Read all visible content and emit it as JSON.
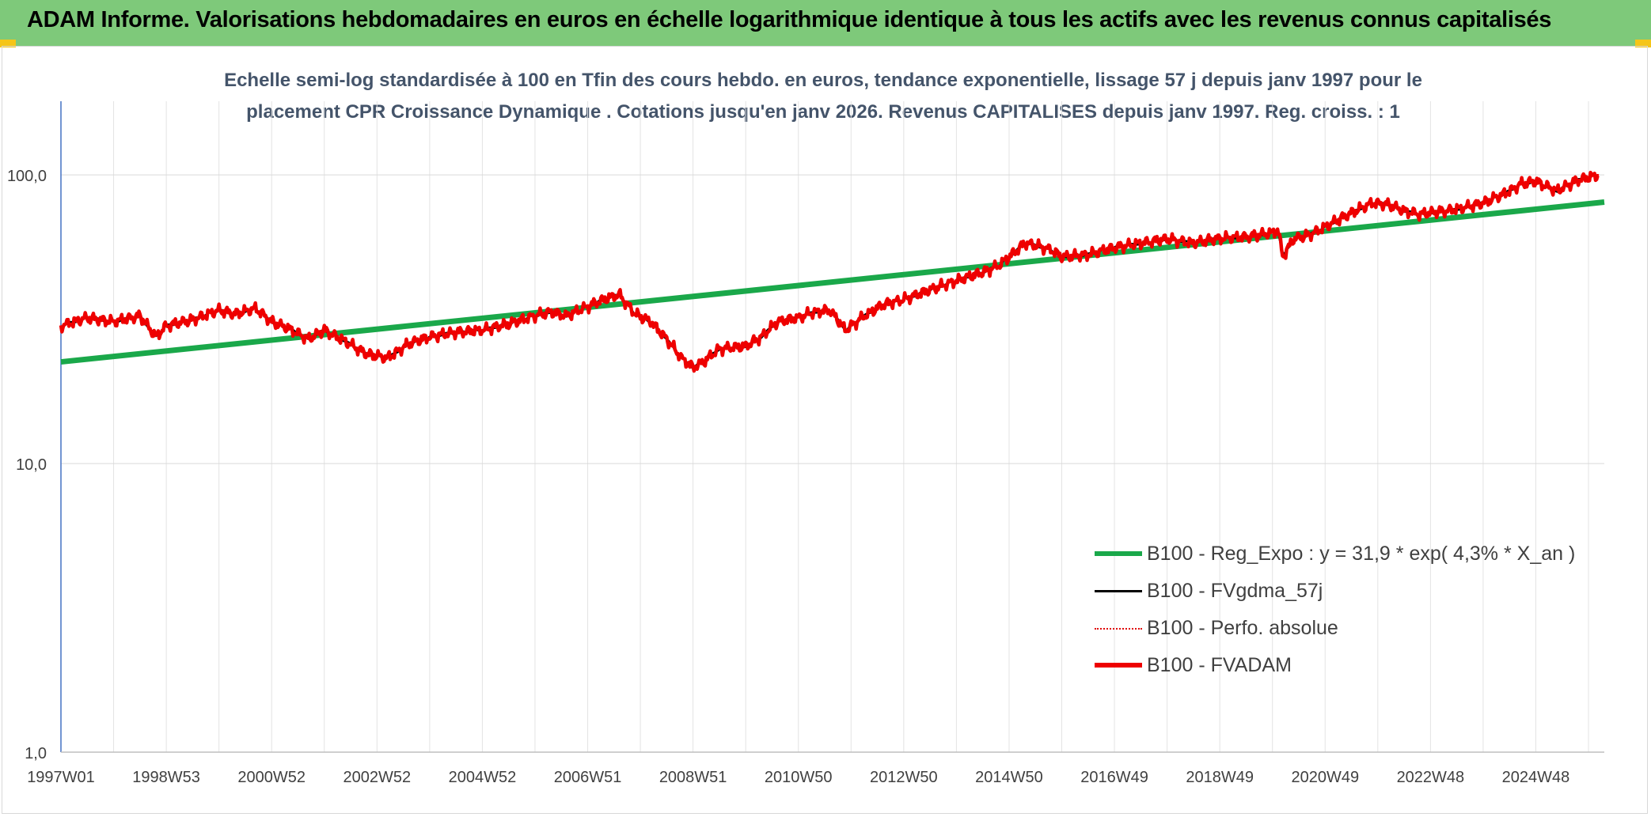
{
  "header": {
    "title": "ADAM Informe. Valorisations hebdomadaires en euros en échelle logarithmique identique à tous les actifs avec les revenus connus capitalisés"
  },
  "chart_data": {
    "type": "line",
    "title_line1": "Echelle semi-log standardisée à 100 en Tfin des cours hebdo. en euros, tendance exponentielle, lissage 57 j depuis janv 1997 pour le",
    "title_line2": "placement CPR Croissance Dynamique . Cotations jusqu'en janv 2026. Revenus CAPITALISES depuis janv 1997. Reg. croiss. : 1",
    "yscale": "log",
    "ylim": [
      1,
      180
    ],
    "xlim": [
      1997.0,
      2026.3
    ],
    "grid": true,
    "legend_position": "bottom-right",
    "y_ticks": [
      {
        "value": 1,
        "label": "1,0"
      },
      {
        "value": 10,
        "label": "10,0"
      },
      {
        "value": 100,
        "label": "100,0"
      }
    ],
    "x_ticks": [
      {
        "t": 1997.0,
        "label": "1997W01"
      },
      {
        "t": 1999.0,
        "label": "1998W53"
      },
      {
        "t": 2001.0,
        "label": "2000W52"
      },
      {
        "t": 2003.0,
        "label": "2002W52"
      },
      {
        "t": 2005.0,
        "label": "2004W52"
      },
      {
        "t": 2007.0,
        "label": "2006W51"
      },
      {
        "t": 2009.0,
        "label": "2008W51"
      },
      {
        "t": 2011.0,
        "label": "2010W50"
      },
      {
        "t": 2013.0,
        "label": "2012W50"
      },
      {
        "t": 2015.0,
        "label": "2014W50"
      },
      {
        "t": 2017.0,
        "label": "2016W49"
      },
      {
        "t": 2019.0,
        "label": "2018W49"
      },
      {
        "t": 2021.0,
        "label": "2020W49"
      },
      {
        "t": 2023.0,
        "label": "2022W48"
      },
      {
        "t": 2025.0,
        "label": "2024W48"
      }
    ],
    "series": [
      {
        "name": "B100 - Reg_Expo : y = 31,9 * exp( 4,3% *  X_an )",
        "color": "#1aa84a",
        "style": "solid-thick",
        "t": [
          1997.0,
          2026.3
        ],
        "values": [
          22.5,
          80.5
        ]
      },
      {
        "name": "B100 - FVgdma_57j",
        "color": "#000000",
        "style": "solid"
      },
      {
        "name": "B100 - Perfo. absolue",
        "color": "#e00000",
        "style": "dotted"
      },
      {
        "name": "B100 - FVADAM",
        "color": "#ee0000",
        "style": "solid-thick",
        "t": [
          1997.0,
          1997.5,
          1998.0,
          1998.5,
          1998.8,
          1999.0,
          1999.5,
          2000.0,
          2000.3,
          2000.7,
          2001.0,
          2001.3,
          2001.7,
          2002.0,
          2002.4,
          2002.8,
          2003.2,
          2003.6,
          2004.0,
          2004.5,
          2005.0,
          2005.5,
          2006.0,
          2006.3,
          2006.6,
          2007.0,
          2007.3,
          2007.6,
          2007.9,
          2008.2,
          2008.5,
          2008.8,
          2009.0,
          2009.2,
          2009.5,
          2010.0,
          2010.3,
          2010.6,
          2011.0,
          2011.3,
          2011.6,
          2011.9,
          2012.2,
          2012.6,
          2013.0,
          2013.5,
          2014.0,
          2014.5,
          2014.8,
          2015.0,
          2015.3,
          2015.5,
          2015.8,
          2016.0,
          2016.5,
          2017.0,
          2017.5,
          2018.0,
          2018.5,
          2018.9,
          2019.1,
          2019.5,
          2020.0,
          2020.1,
          2020.2,
          2020.4,
          2020.7,
          2021.0,
          2021.5,
          2021.9,
          2022.2,
          2022.5,
          2022.8,
          2023.0,
          2023.5,
          2024.0,
          2024.4,
          2024.6,
          2024.7,
          2025.0,
          2025.4,
          2025.8,
          2026.2
        ],
        "values": [
          30,
          32,
          31,
          32.5,
          27.5,
          30,
          31.5,
          34,
          33,
          34.5,
          31,
          29.5,
          27,
          29,
          26.5,
          24,
          23.2,
          26,
          27.5,
          28.5,
          29,
          30.5,
          32.5,
          33.5,
          32.5,
          35,
          37,
          38.5,
          33,
          31,
          27,
          23,
          21.5,
          22.5,
          25,
          25.5,
          27.5,
          31,
          32,
          33.5,
          34,
          29,
          32,
          35.5,
          37,
          40,
          43,
          46,
          48.5,
          52,
          58,
          57,
          55,
          52,
          53,
          56,
          58,
          60,
          58,
          60,
          60.5,
          61,
          63,
          65,
          52,
          60,
          62,
          66,
          74,
          80,
          79,
          75,
          73,
          74,
          76,
          80,
          86,
          90,
          93,
          95,
          88,
          96,
          100
        ]
      }
    ]
  }
}
